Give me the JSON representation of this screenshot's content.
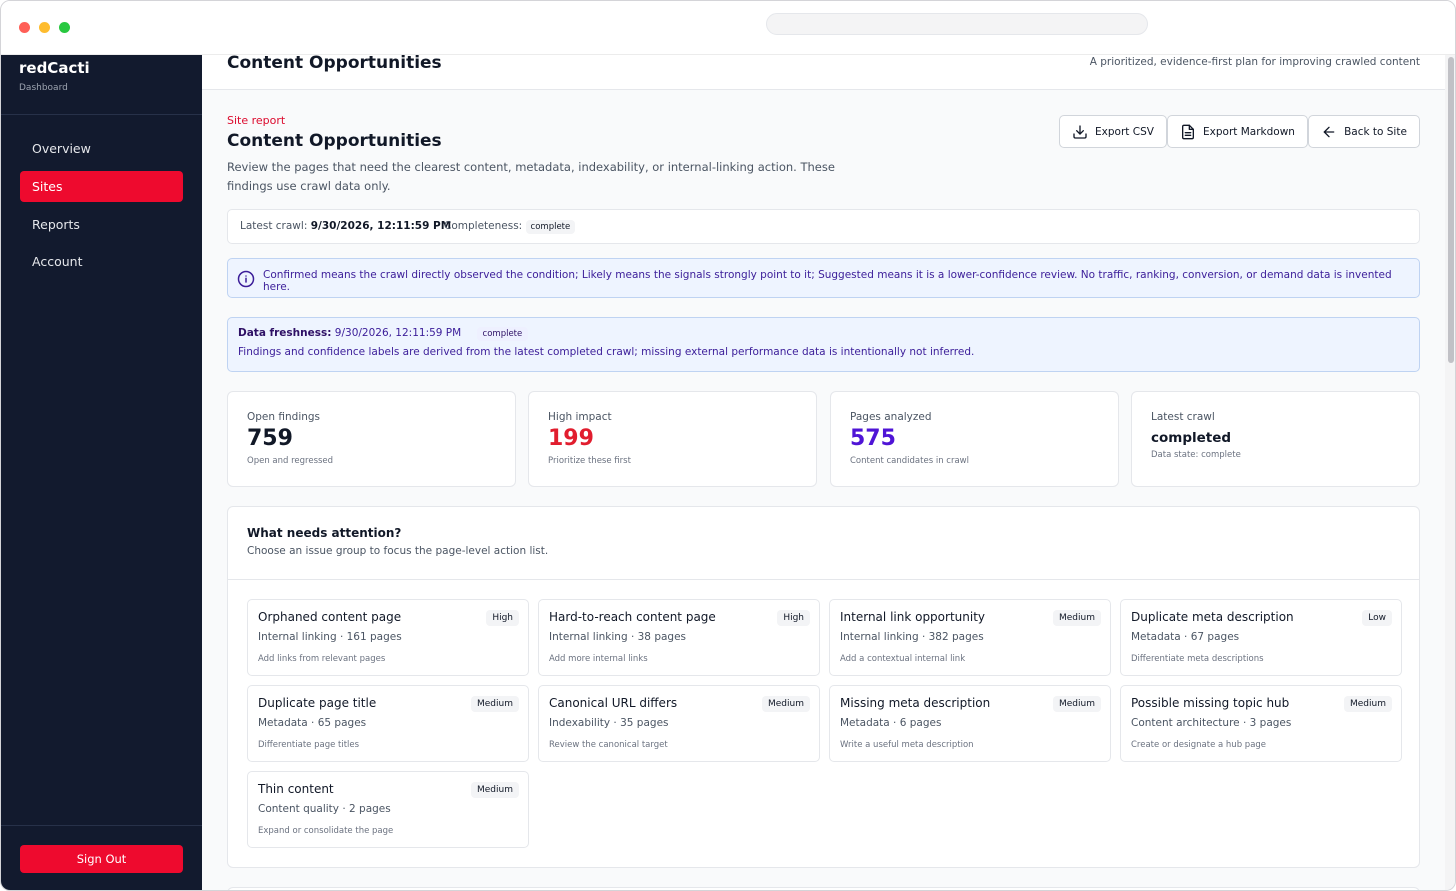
{
  "sidebar": {
    "brand": "redCacti",
    "brand_sub": "Dashboard",
    "items": [
      {
        "label": "Overview"
      },
      {
        "label": "Sites"
      },
      {
        "label": "Reports"
      },
      {
        "label": "Account"
      }
    ],
    "active": "Sites",
    "sign_out": "Sign Out"
  },
  "header": {
    "title": "Content Opportunities",
    "subtitle": "A prioritized, evidence-first plan for improving crawled content"
  },
  "report": {
    "eyebrow": "Site report",
    "title": "Content Opportunities",
    "description": "Review the pages that need the clearest content, metadata, indexability, or internal-linking action. These findings use crawl data only."
  },
  "toolbar": {
    "export_csv": "Export CSV",
    "export_markdown": "Export Markdown",
    "back": "Back to Site"
  },
  "crawl": {
    "latest_label": "Latest crawl:",
    "latest_value": "9/30/2026, 12:11:59 PM",
    "completeness_label": "Completeness:",
    "completeness_value": "complete"
  },
  "info": {
    "text": "Confirmed means the crawl directly observed the condition; Likely means the signals strongly point to it; Suggested means it is a lower-confidence review. No traffic, ranking, conversion, or demand data is invented here."
  },
  "freshness": {
    "label": "Data freshness:",
    "value": "9/30/2026, 12:11:59 PM",
    "badge": "complete",
    "note": "Findings and confidence labels are derived from the latest completed crawl; missing external performance data is intentionally not inferred."
  },
  "stats": [
    {
      "label": "Open findings",
      "value": "759",
      "sub": "Open and regressed",
      "color": "#111827"
    },
    {
      "label": "High impact",
      "value": "199",
      "sub": "Prioritize these first",
      "color": "#e11d2e"
    },
    {
      "label": "Pages analyzed",
      "value": "575",
      "sub": "Content candidates in crawl",
      "color": "#4f14d6"
    },
    {
      "label": "Latest crawl",
      "value": "completed",
      "sub": "Data state: complete",
      "color": "#111827"
    }
  ],
  "attention": {
    "title": "What needs attention?",
    "subtitle": "Choose an issue group to focus the page-level action list.",
    "groups": [
      {
        "title": "Orphaned content page",
        "meta": "Internal linking · 161 pages",
        "action": "Add links from relevant pages",
        "badge": "High"
      },
      {
        "title": "Hard-to-reach content page",
        "meta": "Internal linking · 38 pages",
        "action": "Add more internal links",
        "badge": "High"
      },
      {
        "title": "Internal link opportunity",
        "meta": "Internal linking · 382 pages",
        "action": "Add a contextual internal link",
        "badge": "Medium"
      },
      {
        "title": "Duplicate meta description",
        "meta": "Metadata · 67 pages",
        "action": "Differentiate meta descriptions",
        "badge": "Low"
      },
      {
        "title": "Duplicate page title",
        "meta": "Metadata · 65 pages",
        "action": "Differentiate page titles",
        "badge": "Medium"
      },
      {
        "title": "Canonical URL differs",
        "meta": "Indexability · 35 pages",
        "action": "Review the canonical target",
        "badge": "Medium"
      },
      {
        "title": "Missing meta description",
        "meta": "Metadata · 6 pages",
        "action": "Write a useful meta description",
        "badge": "Medium"
      },
      {
        "title": "Possible missing topic hub",
        "meta": "Content architecture · 3 pages",
        "action": "Create or designate a hub page",
        "badge": "Medium"
      },
      {
        "title": "Thin content",
        "meta": "Content quality · 2 pages",
        "action": "Expand or consolidate the page",
        "badge": "Medium"
      }
    ]
  },
  "colors": {
    "accent": "#ee0a2e",
    "sidebar_bg": "#121a2e",
    "info_bg": "#eef4ff",
    "info_text": "#3b1d99"
  }
}
